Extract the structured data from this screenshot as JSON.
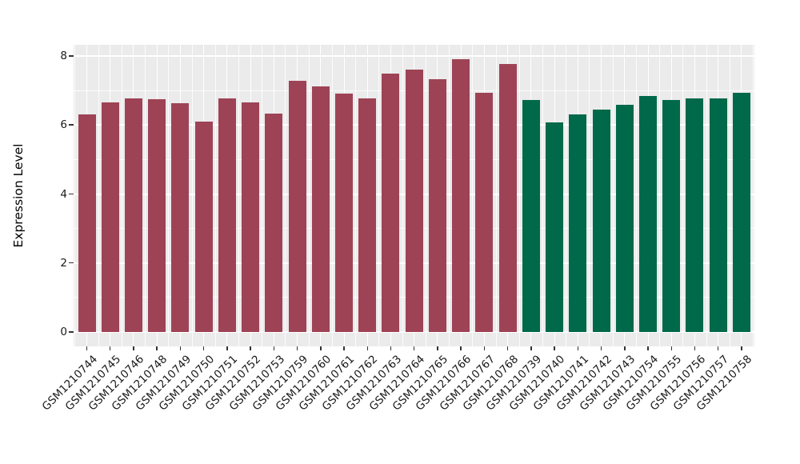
{
  "chart_data": {
    "type": "bar",
    "title": "",
    "xlabel": "",
    "ylabel": "Expression Level",
    "ylim": [
      -0.45,
      8.35
    ],
    "yticks": [
      0,
      2,
      4,
      6,
      8
    ],
    "yticks_minor": [
      1,
      3,
      5,
      7
    ],
    "grid": true,
    "legend": false,
    "panel_bg": "#EBEBEB",
    "grid_color": "#FFFFFF",
    "tick_color": "#333333",
    "categories": [
      "GSM1210744",
      "GSM1210745",
      "GSM1210746",
      "GSM1210748",
      "GSM1210749",
      "GSM1210750",
      "GSM1210751",
      "GSM1210752",
      "GSM1210753",
      "GSM1210759",
      "GSM1210760",
      "GSM1210761",
      "GSM1210762",
      "GSM1210763",
      "GSM1210764",
      "GSM1210765",
      "GSM1210766",
      "GSM1210767",
      "GSM1210768",
      "GSM1210739",
      "GSM1210740",
      "GSM1210741",
      "GSM1210742",
      "GSM1210743",
      "GSM1210754",
      "GSM1210755",
      "GSM1210756",
      "GSM1210757",
      "GSM1210758"
    ],
    "values": [
      6.32,
      6.67,
      6.78,
      6.75,
      6.64,
      6.11,
      6.78,
      6.67,
      6.33,
      7.29,
      7.12,
      6.92,
      6.77,
      7.49,
      7.61,
      7.34,
      7.91,
      6.93,
      7.77,
      6.73,
      6.09,
      6.3,
      6.46,
      6.59,
      6.84,
      6.73,
      6.77,
      6.78,
      6.94
    ],
    "groups": [
      "group1",
      "group1",
      "group1",
      "group1",
      "group1",
      "group1",
      "group1",
      "group1",
      "group1",
      "group1",
      "group1",
      "group1",
      "group1",
      "group1",
      "group1",
      "group1",
      "group1",
      "group1",
      "group1",
      "group2",
      "group2",
      "group2",
      "group2",
      "group2",
      "group2",
      "group2",
      "group2",
      "group2",
      "group2"
    ],
    "group_colors": {
      "group1": "#9E4355",
      "group2": "#00694A"
    }
  }
}
